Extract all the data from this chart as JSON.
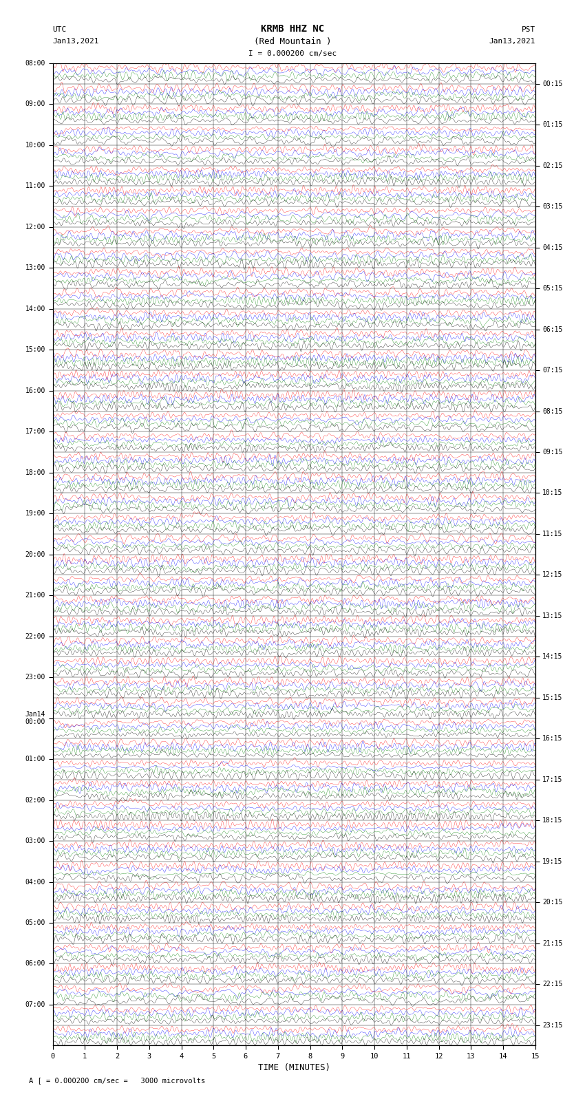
{
  "title_line1": "KRMB HHZ NC",
  "title_line2": "(Red Mountain )",
  "scale_annotation": "I = 0.000200 cm/sec",
  "utc_label": "UTC",
  "utc_date": "Jan13,2021",
  "pst_label": "PST",
  "pst_date": "Jan13,2021",
  "xlabel": "TIME (MINUTES)",
  "bottom_note": "A [ = 0.000200 cm/sec =   3000 microvolts",
  "left_times": [
    "08:00",
    "09:00",
    "10:00",
    "11:00",
    "12:00",
    "13:00",
    "14:00",
    "15:00",
    "16:00",
    "17:00",
    "18:00",
    "19:00",
    "20:00",
    "21:00",
    "22:00",
    "23:00",
    "Jan14\n00:00",
    "01:00",
    "02:00",
    "03:00",
    "04:00",
    "05:00",
    "06:00",
    "07:00"
  ],
  "right_times": [
    "00:15",
    "01:15",
    "02:15",
    "03:15",
    "04:15",
    "05:15",
    "06:15",
    "07:15",
    "08:15",
    "09:15",
    "10:15",
    "11:15",
    "12:15",
    "13:15",
    "14:15",
    "15:15",
    "16:15",
    "17:15",
    "18:15",
    "19:15",
    "20:15",
    "21:15",
    "22:15",
    "23:15"
  ],
  "num_traces": 48,
  "minutes_per_trace": 15,
  "colors": [
    "red",
    "blue",
    "green",
    "black"
  ],
  "fig_width": 8.5,
  "fig_height": 16.13,
  "dpi": 100
}
